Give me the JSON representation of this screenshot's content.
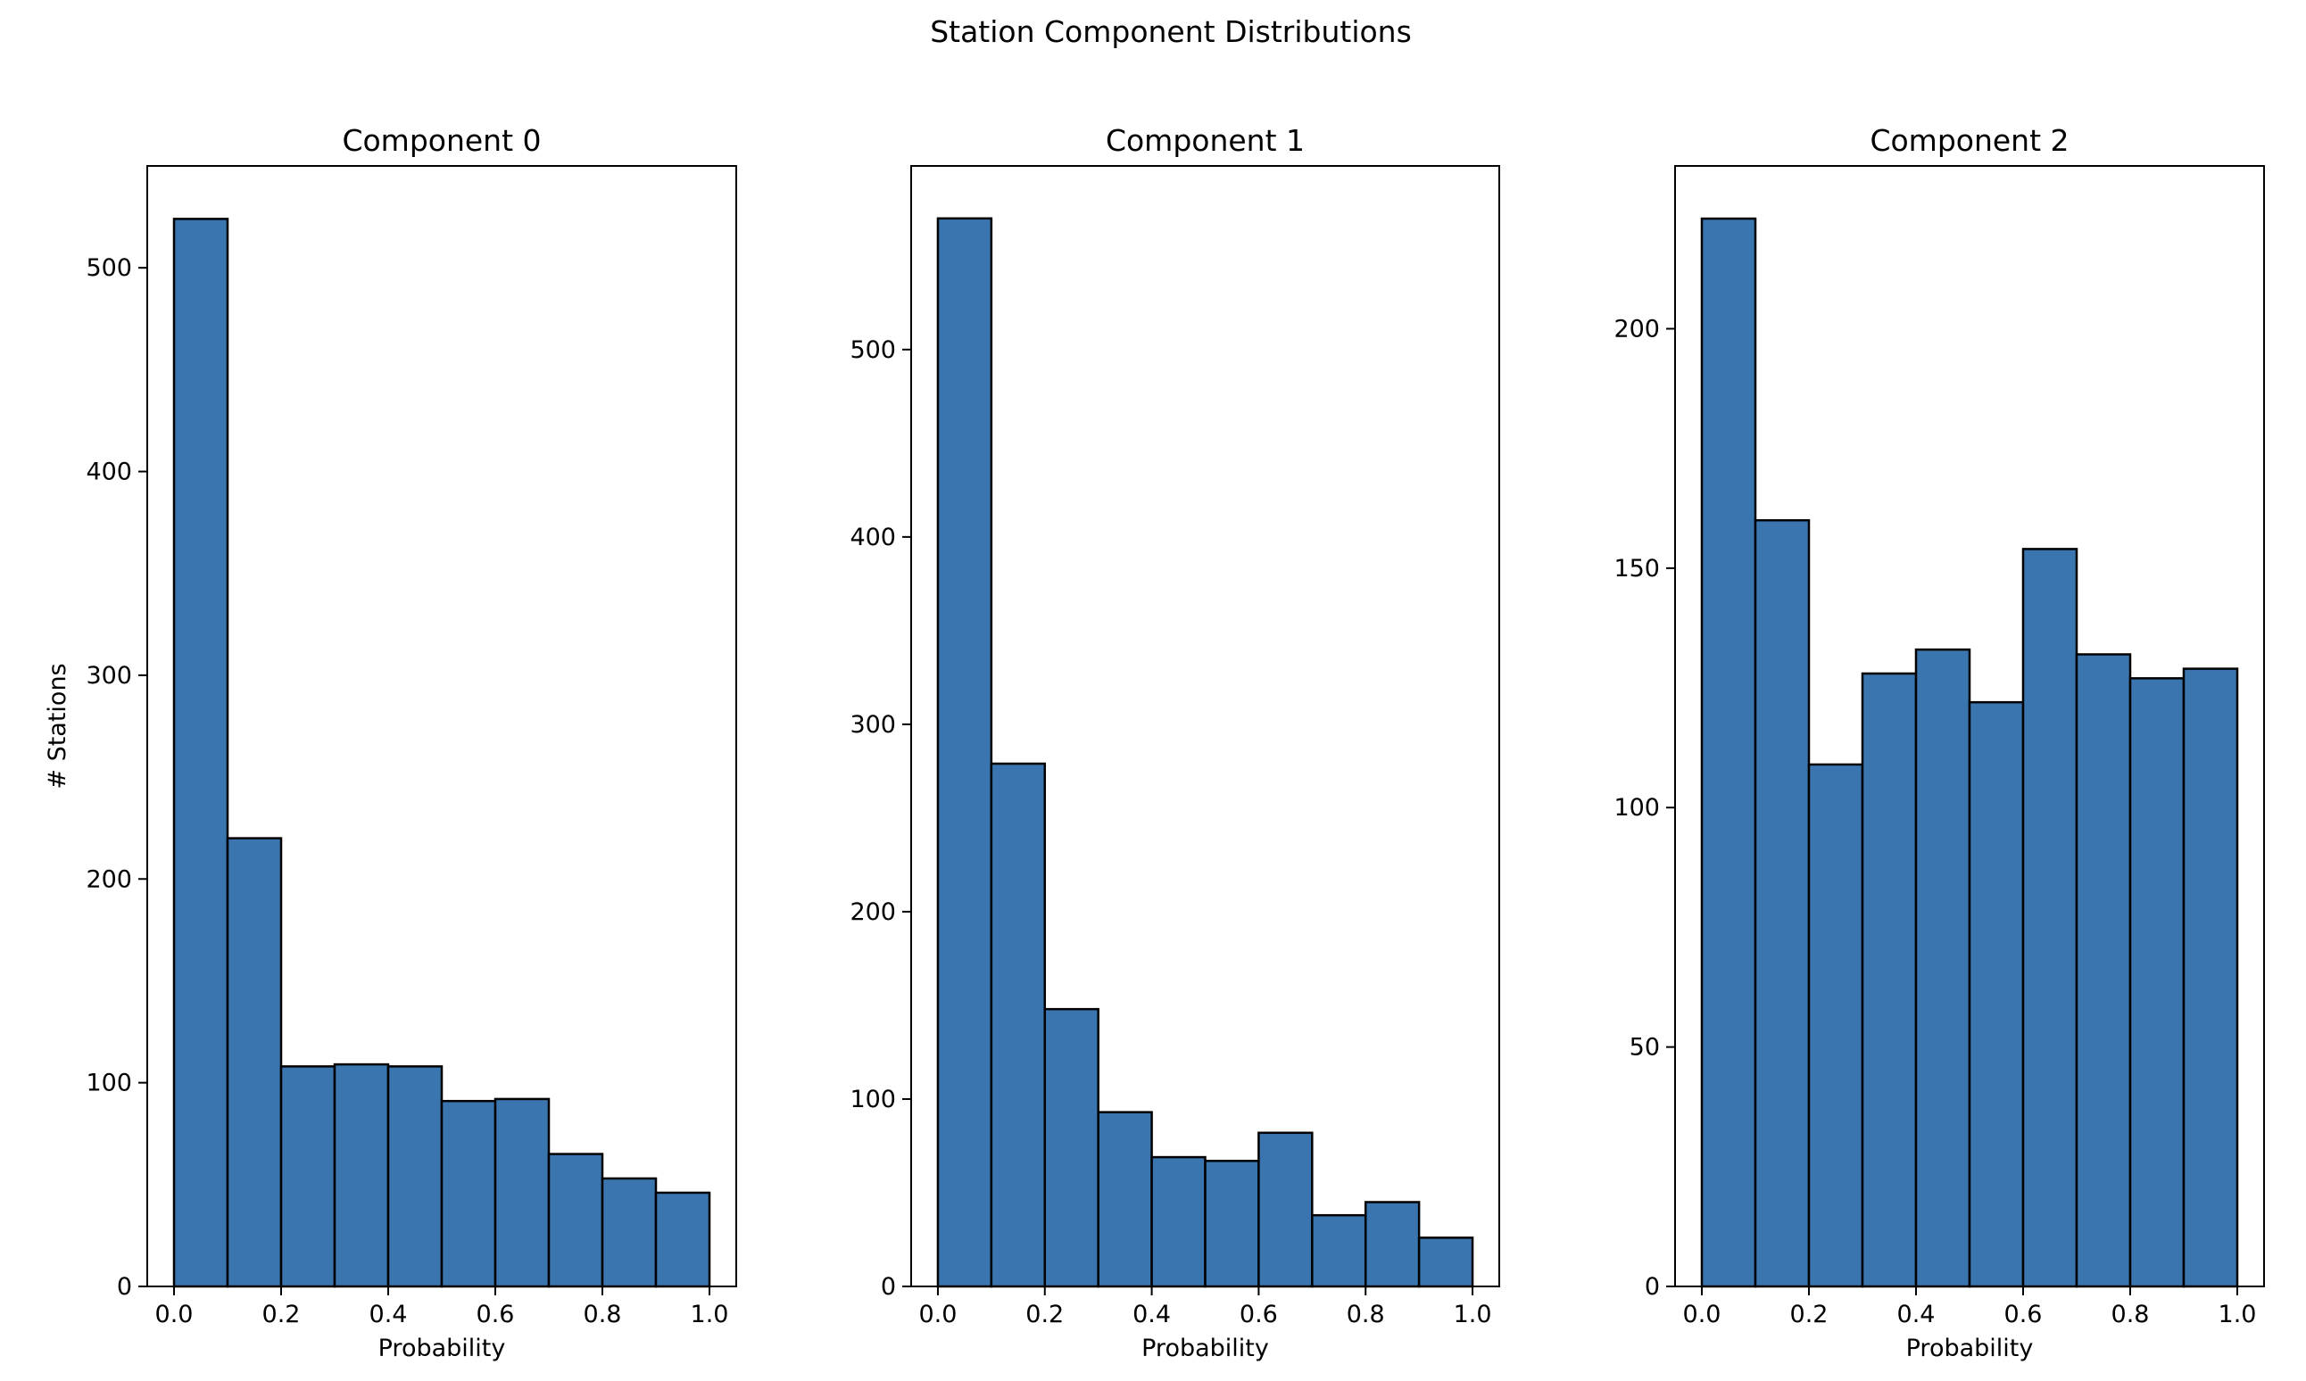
{
  "figure": {
    "title": "Station Component Distributions",
    "bar_color": "#3a75af",
    "edge_color": "#000000",
    "background": "#ffffff"
  },
  "chart_data": [
    {
      "type": "bar",
      "title": "Component 0",
      "xlabel": "Probability",
      "ylabel": "# Stations",
      "bin_edges": [
        0.0,
        0.1,
        0.2,
        0.3,
        0.4,
        0.5,
        0.6,
        0.7,
        0.8,
        0.9,
        1.0
      ],
      "values": [
        524,
        220,
        108,
        109,
        108,
        91,
        92,
        65,
        53,
        46
      ],
      "xlim": [
        -0.05,
        1.05
      ],
      "ylim": [
        0,
        550
      ],
      "xticks": [
        0.0,
        0.2,
        0.4,
        0.6,
        0.8,
        1.0
      ],
      "xtick_labels": [
        "0.0",
        "0.2",
        "0.4",
        "0.6",
        "0.8",
        "1.0"
      ],
      "yticks": [
        0,
        100,
        200,
        300,
        400,
        500
      ],
      "ytick_labels": [
        "0",
        "100",
        "200",
        "300",
        "400",
        "500"
      ],
      "grid": false
    },
    {
      "type": "bar",
      "title": "Component 1",
      "xlabel": "Probability",
      "ylabel": "",
      "bin_edges": [
        0.0,
        0.1,
        0.2,
        0.3,
        0.4,
        0.5,
        0.6,
        0.7,
        0.8,
        0.9,
        1.0
      ],
      "values": [
        570,
        279,
        148,
        93,
        69,
        67,
        82,
        38,
        45,
        26
      ],
      "xlim": [
        -0.05,
        1.05
      ],
      "ylim": [
        0,
        598
      ],
      "xticks": [
        0.0,
        0.2,
        0.4,
        0.6,
        0.8,
        1.0
      ],
      "xtick_labels": [
        "0.0",
        "0.2",
        "0.4",
        "0.6",
        "0.8",
        "1.0"
      ],
      "yticks": [
        0,
        100,
        200,
        300,
        400,
        500
      ],
      "ytick_labels": [
        "0",
        "100",
        "200",
        "300",
        "400",
        "500"
      ],
      "grid": false
    },
    {
      "type": "bar",
      "title": "Component 2",
      "xlabel": "Probability",
      "ylabel": "",
      "bin_edges": [
        0.0,
        0.1,
        0.2,
        0.3,
        0.4,
        0.5,
        0.6,
        0.7,
        0.8,
        0.9,
        1.0
      ],
      "values": [
        223,
        160,
        109,
        128,
        133,
        122,
        154,
        132,
        127,
        129
      ],
      "xlim": [
        -0.05,
        1.05
      ],
      "ylim": [
        0,
        234
      ],
      "xticks": [
        0.0,
        0.2,
        0.4,
        0.6,
        0.8,
        1.0
      ],
      "xtick_labels": [
        "0.0",
        "0.2",
        "0.4",
        "0.6",
        "0.8",
        "1.0"
      ],
      "yticks": [
        0,
        50,
        100,
        150,
        200
      ],
      "ytick_labels": [
        "0",
        "50",
        "100",
        "150",
        "200"
      ],
      "grid": false
    }
  ]
}
